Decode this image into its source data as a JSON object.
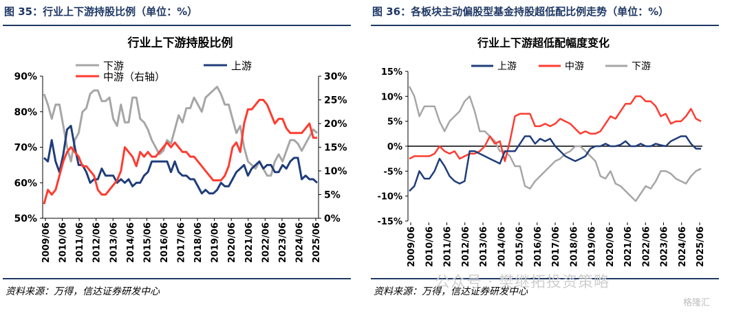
{
  "left": {
    "figure_title": "图 35：行业上下游持股比例（单位：%）",
    "source": "资料来源：万得，信达证券研发中心"
  },
  "right": {
    "figure_title": "图 36：各板块主动偏股型基金持股超低配比例走势（单位：%）",
    "source": "资料来源：万得，信达证券研发中心"
  },
  "watermark": {
    "text": "公众号 · 樊继拓投资策略",
    "logo": "格隆汇"
  },
  "chart_data": [
    {
      "type": "line",
      "title": "行业上下游持股比例",
      "x_labels": [
        "2009/06",
        "2010/06",
        "2011/06",
        "2012/06",
        "2013/06",
        "2014/06",
        "2015/06",
        "2016/06",
        "2017/06",
        "2018/06",
        "2019/06",
        "2020/06",
        "2021/06",
        "2022/06",
        "2023/06",
        "2024/06",
        "2025/06"
      ],
      "left_axis": {
        "min": 50,
        "max": 90,
        "ticks": [
          "90%",
          "80%",
          "70%",
          "60%",
          "50%"
        ],
        "tick_values": [
          90,
          80,
          70,
          60,
          50
        ]
      },
      "right_axis": {
        "min": 0,
        "max": 30,
        "ticks": [
          "30%",
          "25%",
          "20%",
          "15%",
          "10%",
          "5%",
          "0%"
        ],
        "tick_values": [
          30,
          25,
          20,
          15,
          10,
          5,
          0
        ]
      },
      "grid": false,
      "legend_position": "top-left",
      "series": [
        {
          "name": "下游",
          "axis": "left",
          "color": "#a6a6a6",
          "values": [
            85,
            82,
            78,
            82,
            82,
            76,
            70,
            66,
            72,
            74,
            80,
            81,
            85,
            86,
            86,
            83,
            83,
            84,
            78,
            76,
            82,
            77,
            77,
            84,
            84,
            78,
            77,
            75,
            72,
            70,
            68,
            69,
            72,
            71,
            75,
            79,
            77,
            81,
            81,
            84,
            82,
            80,
            84,
            85,
            86,
            87,
            85,
            82,
            82,
            78,
            74,
            76,
            70,
            66,
            65,
            64,
            66,
            64,
            62,
            62,
            66,
            68,
            66,
            69,
            72,
            72,
            71,
            69,
            71,
            73,
            75,
            74
          ]
        },
        {
          "name": "上游",
          "axis": "left",
          "color": "#1f3d7a",
          "values": [
            67,
            66,
            72,
            66,
            63,
            68,
            75,
            76,
            70,
            65,
            65,
            63,
            60,
            61,
            61,
            64,
            62,
            62,
            62,
            60,
            61,
            60,
            61,
            59,
            60,
            60,
            62,
            63,
            66,
            66,
            66,
            66,
            66,
            63,
            66,
            63,
            62,
            62,
            61,
            61,
            59,
            57,
            58,
            57,
            57,
            58,
            60,
            59,
            59,
            61,
            63,
            64,
            65,
            62,
            64,
            65,
            66,
            64,
            65,
            65,
            63,
            63,
            65,
            64,
            66,
            67,
            67,
            61,
            62,
            61,
            61,
            60
          ]
        },
        {
          "name": "中游（右轴）",
          "axis": "right",
          "color": "#ff3b2f",
          "values": [
            3,
            6,
            5,
            6,
            9,
            12,
            14,
            15,
            14,
            13,
            11,
            11,
            10,
            9,
            6,
            5,
            5,
            6,
            7,
            8,
            10,
            15,
            14,
            13,
            11,
            14,
            13,
            14,
            13,
            13,
            14,
            15,
            16,
            15,
            16,
            15,
            14,
            14,
            13,
            13,
            12,
            11,
            10,
            9,
            8,
            8,
            8,
            9,
            11,
            15,
            16,
            14,
            20,
            23,
            23,
            24,
            25,
            25,
            24,
            22,
            20,
            21,
            21,
            19,
            18,
            18,
            18,
            18,
            19,
            20,
            17,
            17
          ]
        }
      ]
    },
    {
      "type": "line",
      "title": "行业上下游超低配幅度变化",
      "x_labels": [
        "2009/06",
        "2010/06",
        "2011/06",
        "2012/06",
        "2013/06",
        "2014/06",
        "2015/06",
        "2016/06",
        "2017/06",
        "2018/06",
        "2019/06",
        "2020/06",
        "2021/06",
        "2022/06",
        "2023/06",
        "2024/06",
        "2025/06"
      ],
      "y_axis": {
        "min": -15,
        "max": 15,
        "ticks": [
          "15%",
          "10%",
          "5%",
          "0%",
          "-5%",
          "-10%",
          "-15%"
        ],
        "tick_values": [
          15,
          10,
          5,
          0,
          -5,
          -10,
          -15
        ]
      },
      "grid": false,
      "legend_position": "top-left",
      "series": [
        {
          "name": "上游",
          "color": "#1f3d7a",
          "values": [
            -9,
            -8,
            -5,
            -6.5,
            -6.5,
            -5,
            -2.5,
            -4,
            -6,
            -7,
            -7.5,
            -7,
            -1,
            -1,
            -1.5,
            -2,
            -2.5,
            -3,
            -3.5,
            -1,
            -1,
            -1,
            0.5,
            2,
            2,
            0.5,
            1.5,
            1,
            1.5,
            0,
            -1,
            -2,
            -2.5,
            -3,
            -2.5,
            -2,
            -0.5,
            0,
            0,
            0.5,
            0,
            0,
            0.3,
            1,
            0,
            0,
            0.5,
            0,
            0,
            0.5,
            0.2,
            0,
            1,
            1.5,
            2,
            2,
            0.5,
            -0.5,
            -0.5
          ]
        },
        {
          "name": "中游",
          "color": "#ff3b2f",
          "values": [
            -2.5,
            -2,
            -2,
            -2,
            -2,
            -1.5,
            0,
            -1,
            -1.5,
            -1,
            -2.5,
            -2,
            -1.5,
            -1.5,
            -1,
            0,
            2,
            0.5,
            1,
            -3,
            1,
            6,
            6.5,
            6.5,
            6.5,
            4,
            4,
            4.5,
            4,
            4.5,
            5.5,
            5,
            4.5,
            3.5,
            2.5,
            3,
            2.5,
            2.5,
            3,
            4.5,
            6,
            5.5,
            7,
            8.5,
            8.5,
            10,
            10,
            9,
            9,
            8,
            6,
            6.5,
            4.5,
            5,
            5,
            6,
            7.5,
            5.5,
            5
          ]
        },
        {
          "name": "下游",
          "color": "#a6a6a6",
          "values": [
            12,
            10,
            6,
            8,
            8,
            8,
            5,
            3,
            5,
            6,
            7,
            9,
            10,
            7,
            3,
            3,
            2,
            1,
            -1,
            -1,
            -2,
            -4,
            -4,
            -8,
            -8.5,
            -7,
            -6,
            -5,
            -4,
            -3,
            -2.5,
            -1.5,
            -1,
            0,
            0,
            -1,
            -2,
            -3,
            -6,
            -6.5,
            -5,
            -7.5,
            -8,
            -9,
            -10,
            -11,
            -9.5,
            -8,
            -8.5,
            -7,
            -5,
            -5,
            -5.5,
            -6.5,
            -7,
            -7.5,
            -6,
            -5,
            -4.5
          ]
        }
      ]
    }
  ]
}
